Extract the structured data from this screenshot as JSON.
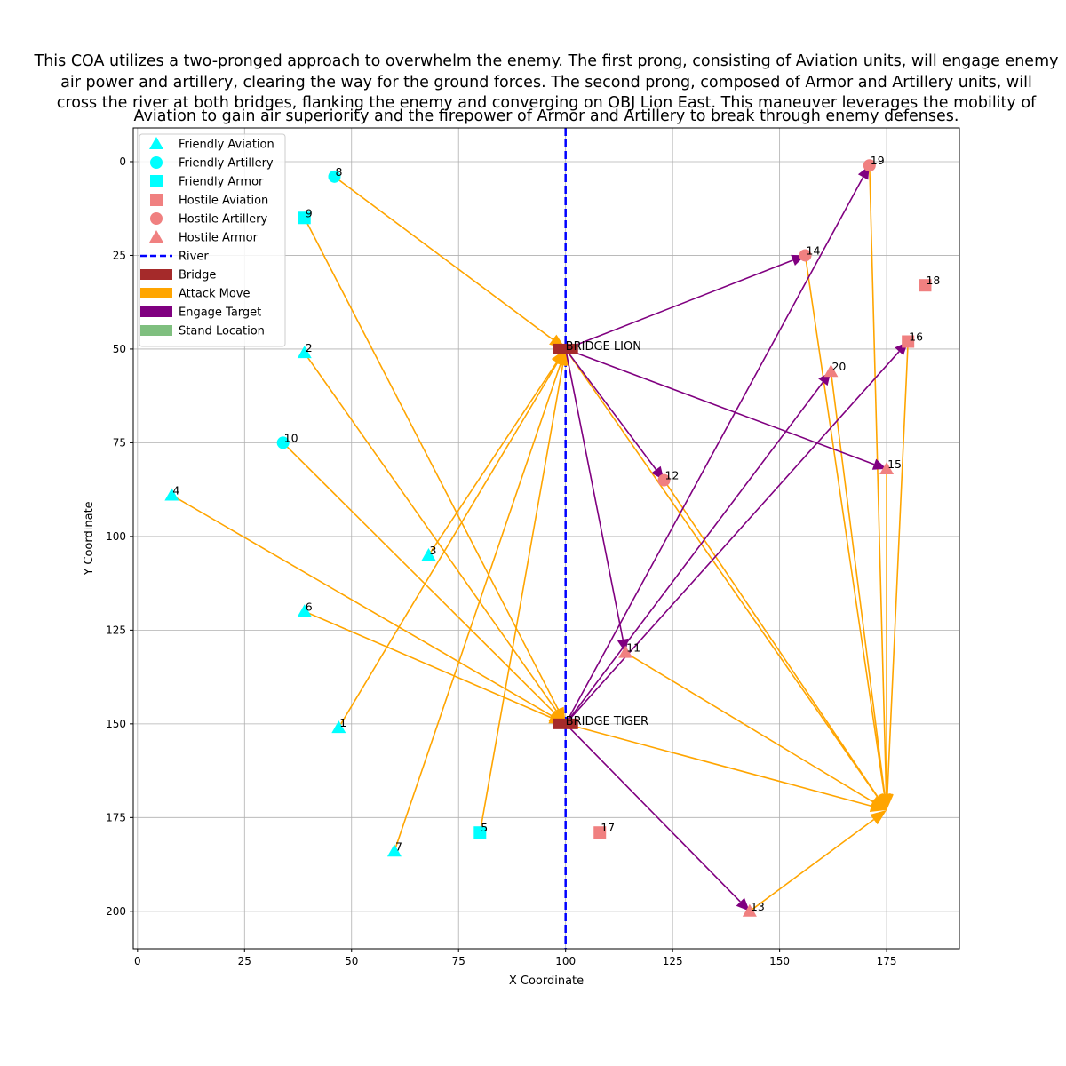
{
  "chart_data": {
    "type": "scatter",
    "title_lines": [
      "This COA utilizes a two-pronged approach to overwhelm the enemy. The first prong, consisting of Aviation units, will engage enemy",
      "air power and artillery, clearing the way for the ground forces. The second prong, composed of Armor and Artillery units, will",
      "cross the river at both bridges, flanking the enemy and converging on OBJ Lion East. This maneuver leverages the mobility of",
      "Aviation to gain air superiority and the firepower of Armor and Artillery to break through enemy defenses."
    ],
    "xlabel": "X Coordinate",
    "ylabel": "Y Coordinate",
    "xlim": [
      -1,
      192
    ],
    "ylim": [
      210,
      -9
    ],
    "y_inverted": true,
    "xticks": [
      0,
      25,
      50,
      75,
      100,
      125,
      150,
      175
    ],
    "yticks": [
      0,
      25,
      50,
      75,
      100,
      125,
      150,
      175,
      200
    ],
    "grid": true,
    "legend_position": "top-left",
    "legend": [
      {
        "label": "Friendly Aviation",
        "kind": "marker",
        "shape": "triangle",
        "color": "#00ffff"
      },
      {
        "label": "Friendly Artillery",
        "kind": "marker",
        "shape": "circle",
        "color": "#00ffff"
      },
      {
        "label": "Friendly Armor",
        "kind": "marker",
        "shape": "square",
        "color": "#00ffff"
      },
      {
        "label": "Hostile Aviation",
        "kind": "marker",
        "shape": "square",
        "color": "#f08080"
      },
      {
        "label": "Hostile Artillery",
        "kind": "marker",
        "shape": "circle",
        "color": "#f08080"
      },
      {
        "label": "Hostile Armor",
        "kind": "marker",
        "shape": "triangle",
        "color": "#f08080"
      },
      {
        "label": "River",
        "kind": "dashed-line",
        "color": "#0000ff"
      },
      {
        "label": "Bridge",
        "kind": "patch",
        "color": "#a52a2a"
      },
      {
        "label": "Attack Move",
        "kind": "patch",
        "color": "#ffa500"
      },
      {
        "label": "Engage Target",
        "kind": "patch",
        "color": "#800080"
      },
      {
        "label": "Stand Location",
        "kind": "patch-alpha",
        "color": "#008000"
      }
    ],
    "colors": {
      "friendly": "#00ffff",
      "hostile": "#f08080",
      "river": "#0000ff",
      "bridge": "#a52a2a",
      "attack_move": "#ffa500",
      "engage_target": "#800080",
      "stand_location": "#008000",
      "grid": "#b0b0b0"
    },
    "river": {
      "x": 100
    },
    "bridges": [
      {
        "name": "BRIDGE LION",
        "x": 100,
        "y": 50
      },
      {
        "name": "BRIDGE TIGER",
        "x": 100,
        "y": 150
      }
    ],
    "units": [
      {
        "id": "1",
        "side": "Friendly",
        "type": "Aviation",
        "x": 47,
        "y": 151
      },
      {
        "id": "2",
        "side": "Friendly",
        "type": "Aviation",
        "x": 39,
        "y": 51
      },
      {
        "id": "3",
        "side": "Friendly",
        "type": "Aviation",
        "x": 68,
        "y": 105
      },
      {
        "id": "4",
        "side": "Friendly",
        "type": "Aviation",
        "x": 8,
        "y": 89
      },
      {
        "id": "5",
        "side": "Friendly",
        "type": "Armor",
        "x": 80,
        "y": 179
      },
      {
        "id": "6",
        "side": "Friendly",
        "type": "Aviation",
        "x": 39,
        "y": 120
      },
      {
        "id": "7",
        "side": "Friendly",
        "type": "Aviation",
        "x": 60,
        "y": 184
      },
      {
        "id": "8",
        "side": "Friendly",
        "type": "Artillery",
        "x": 46,
        "y": 4
      },
      {
        "id": "9",
        "side": "Friendly",
        "type": "Armor",
        "x": 39,
        "y": 15
      },
      {
        "id": "10",
        "side": "Friendly",
        "type": "Artillery",
        "x": 34,
        "y": 75
      },
      {
        "id": "11",
        "side": "Hostile",
        "type": "Armor",
        "x": 114,
        "y": 131
      },
      {
        "id": "12",
        "side": "Hostile",
        "type": "Artillery",
        "x": 123,
        "y": 85
      },
      {
        "id": "13",
        "side": "Hostile",
        "type": "Armor",
        "x": 143,
        "y": 200
      },
      {
        "id": "14",
        "side": "Hostile",
        "type": "Artillery",
        "x": 156,
        "y": 25
      },
      {
        "id": "15",
        "side": "Hostile",
        "type": "Armor",
        "x": 175,
        "y": 82
      },
      {
        "id": "16",
        "side": "Hostile",
        "type": "Aviation",
        "x": 180,
        "y": 48
      },
      {
        "id": "17",
        "side": "Hostile",
        "type": "Aviation",
        "x": 108,
        "y": 179
      },
      {
        "id": "18",
        "side": "Hostile",
        "type": "Aviation",
        "x": 184,
        "y": 33
      },
      {
        "id": "19",
        "side": "Hostile",
        "type": "Artillery",
        "x": 171,
        "y": 1
      },
      {
        "id": "20",
        "side": "Hostile",
        "type": "Armor",
        "x": 162,
        "y": 56
      }
    ],
    "attack_moves": [
      {
        "from": [
          46,
          4
        ],
        "to": [
          100,
          50
        ]
      },
      {
        "from": [
          39,
          15
        ],
        "to": [
          100,
          150
        ]
      },
      {
        "from": [
          39,
          51
        ],
        "to": [
          100,
          150
        ]
      },
      {
        "from": [
          34,
          75
        ],
        "to": [
          100,
          150
        ]
      },
      {
        "from": [
          8,
          89
        ],
        "to": [
          100,
          150
        ]
      },
      {
        "from": [
          39,
          120
        ],
        "to": [
          100,
          150
        ]
      },
      {
        "from": [
          68,
          105
        ],
        "to": [
          100,
          50
        ]
      },
      {
        "from": [
          47,
          151
        ],
        "to": [
          100,
          50
        ]
      },
      {
        "from": [
          60,
          184
        ],
        "to": [
          100,
          50
        ]
      },
      {
        "from": [
          80,
          179
        ],
        "to": [
          100,
          50
        ]
      },
      {
        "from": [
          100,
          50
        ],
        "to": [
          175,
          173
        ]
      },
      {
        "from": [
          100,
          150
        ],
        "to": [
          175,
          173
        ]
      },
      {
        "from": [
          123,
          85
        ],
        "to": [
          175,
          173
        ]
      },
      {
        "from": [
          114,
          131
        ],
        "to": [
          175,
          173
        ]
      },
      {
        "from": [
          143,
          200
        ],
        "to": [
          175,
          173
        ]
      },
      {
        "from": [
          156,
          25
        ],
        "to": [
          175,
          173
        ]
      },
      {
        "from": [
          162,
          56
        ],
        "to": [
          175,
          173
        ]
      },
      {
        "from": [
          171,
          1
        ],
        "to": [
          175,
          173
        ]
      },
      {
        "from": [
          180,
          48
        ],
        "to": [
          175,
          173
        ]
      },
      {
        "from": [
          175,
          82
        ],
        "to": [
          175,
          173
        ]
      }
    ],
    "engage_targets": [
      {
        "from": [
          100,
          50
        ],
        "to": [
          156,
          25
        ]
      },
      {
        "from": [
          100,
          50
        ],
        "to": [
          175,
          82
        ]
      },
      {
        "from": [
          100,
          50
        ],
        "to": [
          123,
          85
        ]
      },
      {
        "from": [
          100,
          50
        ],
        "to": [
          114,
          131
        ]
      },
      {
        "from": [
          100,
          150
        ],
        "to": [
          171,
          1
        ]
      },
      {
        "from": [
          100,
          150
        ],
        "to": [
          162,
          56
        ]
      },
      {
        "from": [
          100,
          150
        ],
        "to": [
          180,
          48
        ]
      },
      {
        "from": [
          100,
          150
        ],
        "to": [
          143,
          200
        ]
      }
    ]
  }
}
